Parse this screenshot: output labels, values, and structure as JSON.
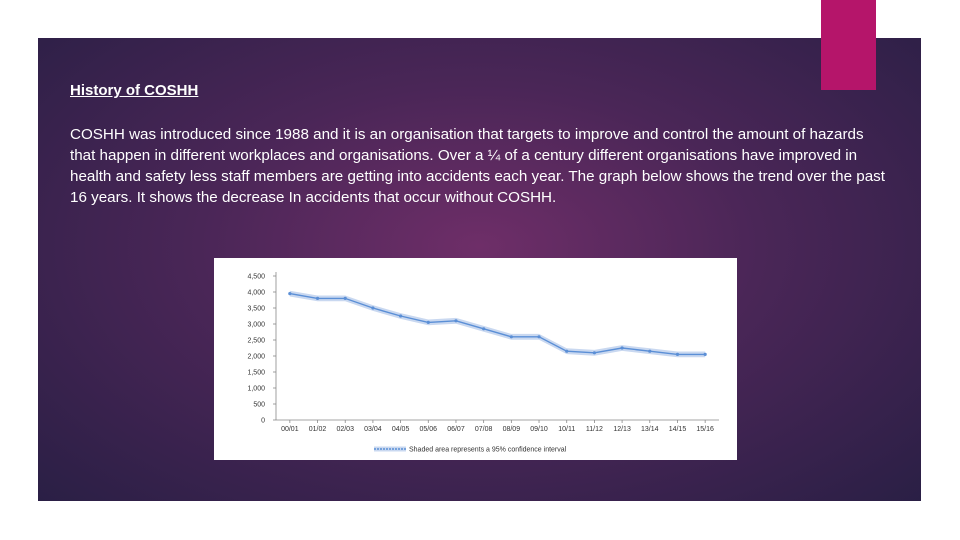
{
  "slide": {
    "heading": "History of COSHH",
    "paragraph": "COSHH was introduced since 1988 and it is an organisation that targets to improve and control the amount of hazards that happen in different workplaces and organisations. Over a ¼ of a century different organisations have improved in health and safety less staff members are getting into accidents each year. The graph below shows the trend over the past 16 years. It shows the decrease In accidents that occur without COSHH.",
    "colors": {
      "background": "#4a2657",
      "accent": "#b5156a",
      "text": "#ffffff",
      "series": "#5b8fd6",
      "band": "#c9d8f0"
    }
  },
  "chart_data": {
    "type": "line",
    "title": "",
    "xlabel": "",
    "ylabel": "",
    "categories": [
      "00/01",
      "01/02",
      "02/03",
      "03/04",
      "04/05",
      "05/06",
      "06/07",
      "07/08",
      "08/09",
      "09/10",
      "10/11",
      "11/12",
      "12/13",
      "13/14",
      "14/15",
      "15/16"
    ],
    "y_ticks": [
      "0",
      "500",
      "1,000",
      "1,500",
      "2,000",
      "2,500",
      "3,000",
      "3,500",
      "4,000",
      "4,500"
    ],
    "ylim": [
      0,
      4500
    ],
    "series": [
      {
        "name": "Shaded area represents a 95% confidence interval",
        "values": [
          3950,
          3800,
          3800,
          3500,
          3250,
          3050,
          3100,
          2850,
          2600,
          2600,
          2150,
          2100,
          2250,
          2150,
          2050,
          2050
        ]
      }
    ],
    "legend": "Shaded area represents a 95% confidence interval"
  }
}
